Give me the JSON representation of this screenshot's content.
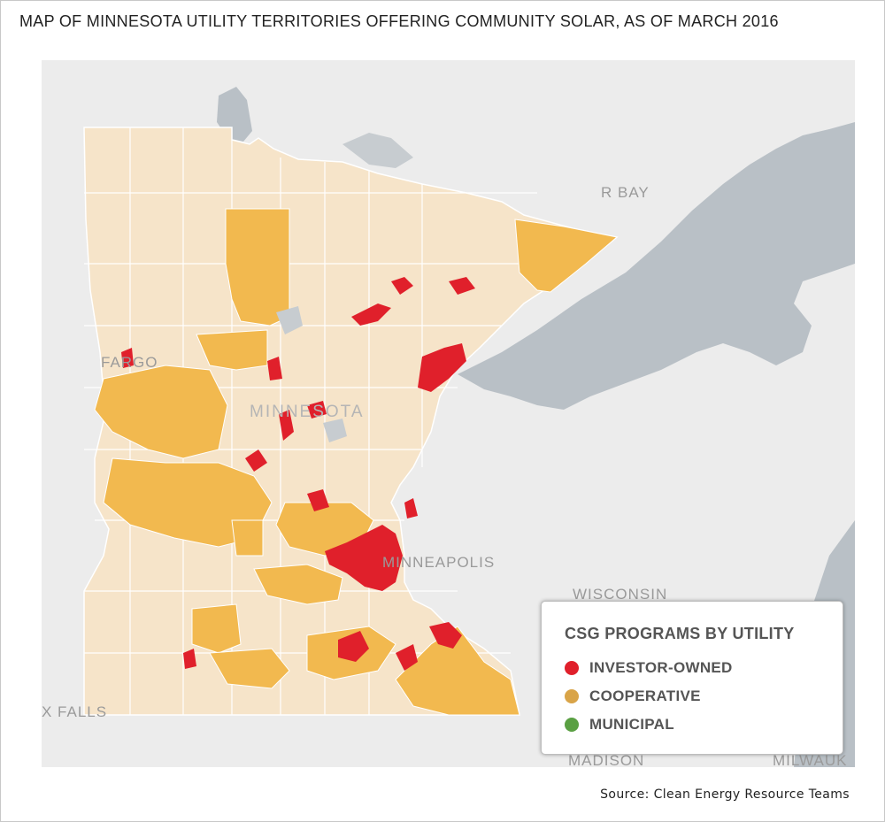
{
  "title": "MAP OF MINNESOTA UTILITY TERRITORIES OFFERING COMMUNITY SOLAR, AS OF MARCH 2016",
  "map": {
    "labels": {
      "bay": "R BAY",
      "fargo": "FARGO",
      "minnesota": "MINNESOTA",
      "minneapolis": "MINNEAPOLIS",
      "wisconsin": "WISCONSIN",
      "falls": "X FALLS",
      "madison": "MADISON",
      "milwaukee": "MILWAUK"
    },
    "colors": {
      "background": "#ececec",
      "water": "#b9c0c6",
      "state_base": "#f6e4c9",
      "cooperative": "#f2b94f",
      "investor_owned": "#e0202b",
      "municipal": "#5aa043"
    }
  },
  "legend": {
    "title": "CSG PROGRAMS BY UTILITY",
    "items": [
      {
        "label": "INVESTOR-OWNED",
        "color": "#e0202b"
      },
      {
        "label": "COOPERATIVE",
        "color": "#d9a448"
      },
      {
        "label": "MUNICIPAL",
        "color": "#5aa043"
      }
    ]
  },
  "source": "Source: Clean Energy Resource Teams"
}
